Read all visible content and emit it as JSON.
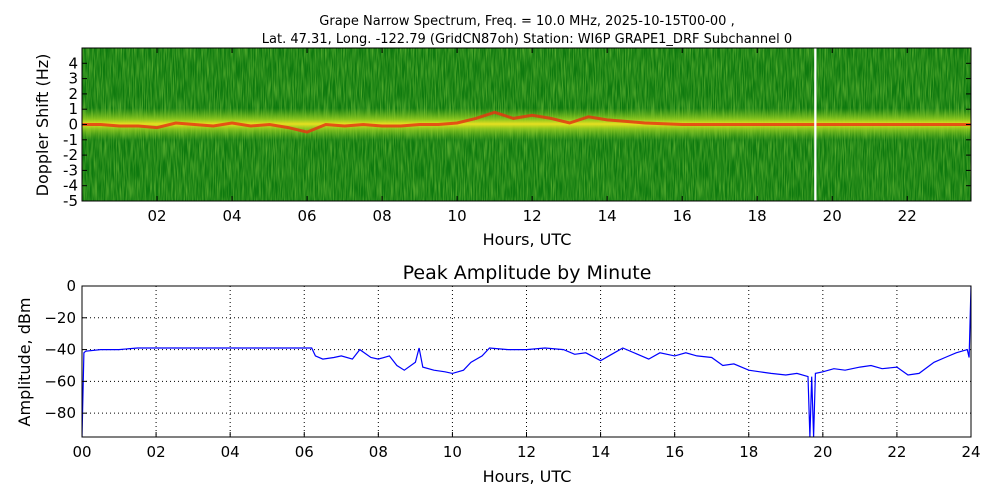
{
  "chart_data": [
    {
      "type": "heatmap",
      "title_line1": "Grape Narrow Spectrum, Freq. = 10.0 MHz, 2025-10-15T00-00 ,",
      "title_line2": "Lat.  47.31, Long. -122.79 (GridCN87oh) Station: WI6P GRAPE1_DRF Subchannel 0",
      "xlabel": "Hours, UTC",
      "ylabel": "Doppler Shift (Hz)",
      "xlim": [
        0,
        23.7
      ],
      "ylim": [
        -5,
        5
      ],
      "xticks": [
        "02",
        "04",
        "06",
        "08",
        "10",
        "12",
        "14",
        "16",
        "18",
        "20",
        "22"
      ],
      "xtick_values": [
        2,
        4,
        6,
        8,
        10,
        12,
        14,
        16,
        18,
        20,
        22
      ],
      "yticks": [
        "4",
        "3",
        "2",
        "1",
        "0",
        "-1",
        "-2",
        "-3",
        "-4",
        "-5"
      ],
      "ytick_values": [
        4,
        3,
        2,
        1,
        0,
        -1,
        -2,
        -3,
        -4,
        -5
      ],
      "colors": {
        "background": "#0f7a0f",
        "mid": "#7cc020",
        "bright": "#e8e020",
        "peak": "#e83010",
        "gap": "#ffffff"
      },
      "data_gap_hours": [
        19.52,
        19.58
      ],
      "carrier_trace": {
        "x": [
          0,
          0.5,
          1,
          1.5,
          2,
          2.5,
          3,
          3.5,
          4,
          4.5,
          5,
          5.5,
          6,
          6.5,
          7,
          7.5,
          8,
          8.5,
          9,
          9.5,
          10,
          10.5,
          11,
          11.5,
          12,
          12.5,
          13,
          13.5,
          14,
          14.5,
          15,
          16,
          17,
          18,
          19,
          20,
          21,
          22,
          23,
          23.7
        ],
        "y": [
          0,
          0,
          -0.1,
          -0.1,
          -0.2,
          0.1,
          0,
          -0.1,
          0.1,
          -0.1,
          0,
          -0.2,
          -0.5,
          0,
          -0.1,
          0,
          -0.1,
          -0.1,
          0,
          0,
          0.1,
          0.4,
          0.8,
          0.4,
          0.6,
          0.4,
          0.1,
          0.5,
          0.3,
          0.2,
          0.1,
          0,
          0,
          0,
          0,
          0,
          0,
          0,
          0,
          0
        ]
      }
    },
    {
      "type": "line",
      "title": "Peak Amplitude by Minute",
      "xlabel": "Hours, UTC",
      "ylabel": "Amplitude, dBm",
      "xlim": [
        0,
        24
      ],
      "ylim": [
        -95,
        0
      ],
      "xticks": [
        "00",
        "02",
        "04",
        "06",
        "08",
        "10",
        "12",
        "14",
        "16",
        "18",
        "20",
        "22",
        "24"
      ],
      "xtick_values": [
        0,
        2,
        4,
        6,
        8,
        10,
        12,
        14,
        16,
        18,
        20,
        22,
        24
      ],
      "yticks": [
        "0",
        "−20",
        "−40",
        "−60",
        "−80"
      ],
      "ytick_values": [
        0,
        -20,
        -40,
        -60,
        -80
      ],
      "grid": true,
      "line_color": "#0000ff",
      "series": [
        {
          "x": [
            0,
            0.05,
            0.1,
            0.5,
            1,
            1.5,
            2,
            2.5,
            3,
            3.5,
            4,
            4.5,
            5,
            5.5,
            6,
            6.2,
            6.3,
            6.5,
            6.8,
            7,
            7.3,
            7.5,
            7.8,
            8,
            8.3,
            8.5,
            8.7,
            9,
            9.1,
            9.2,
            9.5,
            9.8,
            10,
            10.3,
            10.5,
            10.8,
            11,
            11.5,
            12,
            12.5,
            13,
            13.3,
            13.6,
            14,
            14.3,
            14.6,
            15,
            15.3,
            15.6,
            16,
            16.3,
            16.6,
            17,
            17.3,
            17.6,
            18,
            18.3,
            18.6,
            19,
            19.3,
            19.6,
            19.65,
            19.7,
            19.75,
            19.8,
            20,
            20.3,
            20.6,
            21,
            21.3,
            21.6,
            22,
            22.3,
            22.6,
            23,
            23.3,
            23.6,
            23.9,
            23.95,
            24
          ],
          "y": [
            -95,
            -42,
            -41,
            -40,
            -40,
            -39,
            -39,
            -39,
            -39,
            -39,
            -39,
            -39,
            -39,
            -39,
            -39,
            -39,
            -44,
            -46,
            -45,
            -44,
            -46,
            -40,
            -45,
            -46,
            -44,
            -50,
            -53,
            -48,
            -39,
            -51,
            -53,
            -54,
            -55,
            -53,
            -48,
            -44,
            -39,
            -40,
            -40,
            -39,
            -40,
            -43,
            -42,
            -47,
            -43,
            -39,
            -43,
            -46,
            -42,
            -44,
            -42,
            -44,
            -45,
            -50,
            -49,
            -53,
            -54,
            -55,
            -56,
            -55,
            -57,
            -95,
            -57,
            -95,
            -55,
            -54,
            -52,
            -53,
            -51,
            -50,
            -52,
            -51,
            -56,
            -55,
            -48,
            -45,
            -42,
            -40,
            -45,
            0
          ]
        }
      ]
    }
  ]
}
